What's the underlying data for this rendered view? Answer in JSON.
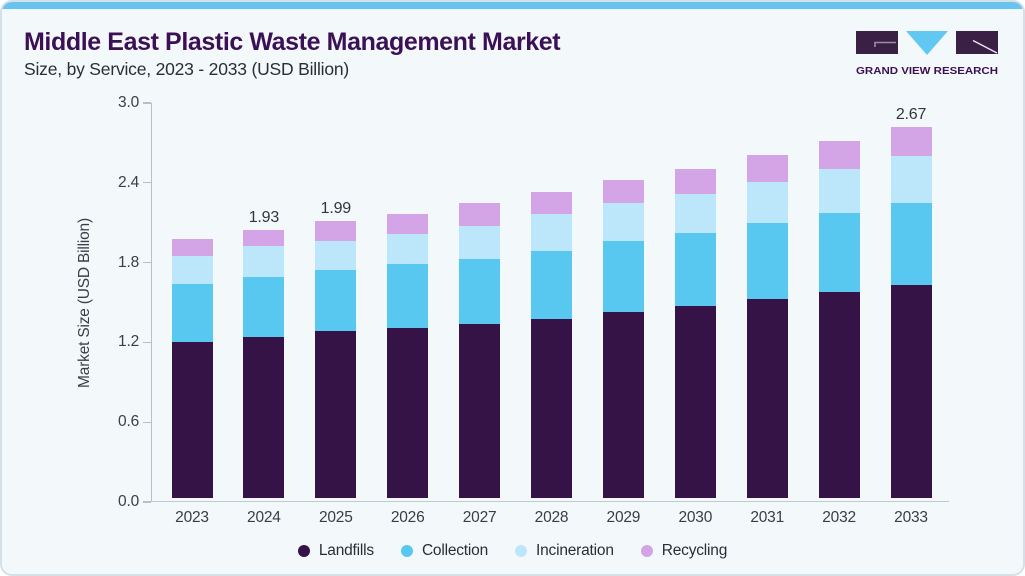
{
  "header": {
    "title": "Middle East Plastic Waste Management Market",
    "subtitle": "Size, by Service, 2023 - 2033 (USD Billion)"
  },
  "logo": {
    "brand": "GRAND VIEW RESEARCH"
  },
  "chart_data": {
    "type": "bar",
    "stacked": true,
    "title": "Middle East Plastic Waste Management Market Size, by Service, 2023 - 2033 (USD Billion)",
    "categories": [
      "2023",
      "2024",
      "2025",
      "2026",
      "2027",
      "2028",
      "2029",
      "2030",
      "2031",
      "2032",
      "2033"
    ],
    "series": [
      {
        "name": "Landfills",
        "color": "#351347",
        "values": [
          1.12,
          1.16,
          1.2,
          1.22,
          1.25,
          1.29,
          1.34,
          1.38,
          1.43,
          1.48,
          1.53
        ]
      },
      {
        "name": "Collection",
        "color": "#58c8f1",
        "values": [
          0.42,
          0.43,
          0.44,
          0.46,
          0.47,
          0.49,
          0.51,
          0.53,
          0.55,
          0.57,
          0.59
        ]
      },
      {
        "name": "Incineration",
        "color": "#bce6f9",
        "values": [
          0.2,
          0.22,
          0.21,
          0.22,
          0.24,
          0.26,
          0.27,
          0.28,
          0.29,
          0.32,
          0.34
        ]
      },
      {
        "name": "Recycling",
        "color": "#d3a5e6",
        "values": [
          0.12,
          0.12,
          0.14,
          0.14,
          0.16,
          0.16,
          0.17,
          0.18,
          0.2,
          0.2,
          0.21
        ]
      }
    ],
    "totals": [
      1.86,
      1.93,
      1.99,
      2.04,
      2.12,
      2.2,
      2.29,
      2.37,
      2.47,
      2.57,
      2.67
    ],
    "value_labels": [
      {
        "category": "2024",
        "label": "1.93"
      },
      {
        "category": "2025",
        "label": "1.99"
      },
      {
        "category": "2033",
        "label": "2.67"
      }
    ],
    "ylabel": "Market Size (USD Billion)",
    "yticks": [
      "0.0",
      "0.6",
      "1.2",
      "1.8",
      "2.4",
      "3.0"
    ],
    "ylim": [
      0.0,
      3.0
    ],
    "xlabel": "",
    "grid": false,
    "legend_position": "bottom",
    "accent_colors": {
      "title": "#3b1054",
      "top_bar": "#66c4ef",
      "background": "#f3f8fb"
    }
  }
}
